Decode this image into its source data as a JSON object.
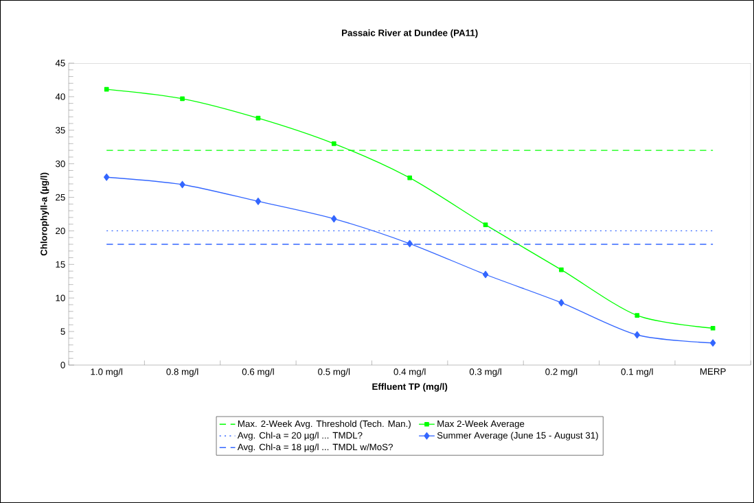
{
  "chart_data": {
    "type": "line",
    "title": "Passaic River at Dundee (PA11)",
    "xlabel": "Effluent TP (mg/l)",
    "ylabel": "Chlorophyll-a (µg/l)",
    "categories": [
      "1.0 mg/l",
      "0.8 mg/l",
      "0.6 mg/l",
      "0.5 mg/l",
      "0.4 mg/l",
      "0.3 mg/l",
      "0.2 mg/l",
      "0.1 mg/l",
      "MERP"
    ],
    "ylim": [
      0,
      45
    ],
    "yticks": [
      0,
      5,
      10,
      15,
      20,
      25,
      30,
      35,
      40,
      45
    ],
    "legend": "bottom",
    "line_style": "solid",
    "series": [
      {
        "name": "Max 2-Week Average",
        "color": "#00ff00",
        "marker": "square",
        "values": [
          41.1,
          39.7,
          36.8,
          33.0,
          27.9,
          20.9,
          14.2,
          7.4,
          5.5
        ]
      },
      {
        "name": "Summer Average (June 15 - August 31)",
        "color": "#3366ff",
        "marker": "diamond",
        "values": [
          28.0,
          26.9,
          24.4,
          21.8,
          18.1,
          13.5,
          9.3,
          4.5,
          3.3
        ]
      }
    ],
    "ref_lines": [
      {
        "axis": "y",
        "value": 32,
        "label": "Max. 2-Week Avg. Threshold (Tech. Man.)",
        "color": "#00ff00",
        "line_style": "dashed"
      },
      {
        "axis": "y",
        "value": 20,
        "label": "Avg. Chl-a = 20 µg/l ... TMDL?",
        "color": "#3366ff",
        "line_style": "dotted"
      },
      {
        "axis": "y",
        "value": 18,
        "label": "Avg. Chl-a = 18 µg/l ... TMDL w/MoS?",
        "color": "#3366ff",
        "line_style": "dashed"
      }
    ]
  }
}
